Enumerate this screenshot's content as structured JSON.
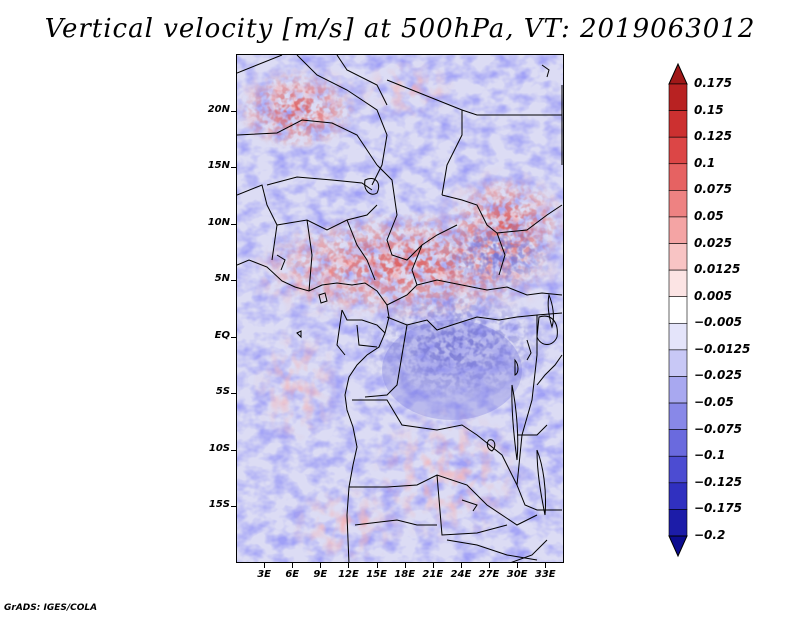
{
  "title": "Vertical velocity [m/s] at 500hPa, VT: 2019063012",
  "credit": "GrADS: IGES/COLA",
  "map": {
    "lat_ticks": [
      "20N",
      "15N",
      "10N",
      "5N",
      "EQ",
      "5S",
      "10S",
      "15S"
    ],
    "lat_values": [
      20,
      15,
      10,
      5,
      0,
      -5,
      -10,
      -15
    ],
    "lon_ticks": [
      "3E",
      "6E",
      "9E",
      "12E",
      "15E",
      "18E",
      "21E",
      "24E",
      "27E",
      "30E",
      "33E"
    ],
    "lon_values": [
      3,
      6,
      9,
      12,
      15,
      18,
      21,
      24,
      27,
      30,
      33
    ],
    "lon_range": [
      0,
      35
    ],
    "lat_range": [
      -20,
      25
    ]
  },
  "colorbar": {
    "labels": [
      "0.175",
      "0.15",
      "0.125",
      "0.1",
      "0.075",
      "0.05",
      "0.025",
      "0.0125",
      "0.005",
      "−0.005",
      "−0.0125",
      "−0.025",
      "−0.05",
      "−0.075",
      "−0.1",
      "−0.125",
      "−0.175",
      "−0.2"
    ],
    "colors": [
      "#a01818",
      "#b82222",
      "#cc3030",
      "#dc4646",
      "#e66262",
      "#ee8282",
      "#f4a4a4",
      "#f8c4c4",
      "#fce4e4",
      "#ffffff",
      "#e4e4fa",
      "#c8c8f6",
      "#a8a8f0",
      "#8888e8",
      "#6a6ade",
      "#4c4cd2",
      "#3030c0",
      "#1c1ca8",
      "#0c0c90"
    ]
  }
}
